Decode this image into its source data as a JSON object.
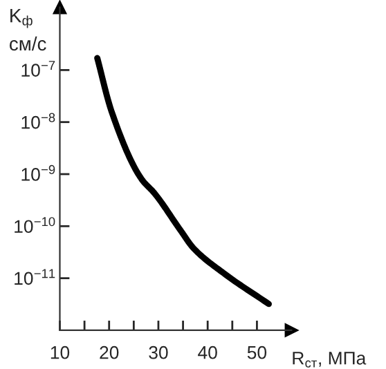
{
  "chart_data": {
    "type": "line",
    "xlabel": "R$_{ст}$, МПа",
    "ylabel": "K$_{ф}$\nсм/с",
    "x": [
      17.6,
      20.5,
      26.6,
      29.2,
      34.5,
      37.1,
      43.2,
      52.4
    ],
    "series": [
      {
        "color": "#000000",
        "values": [
          1.7e-07,
          1.6e-08,
          8e-10,
          4.3e-10,
          8.3e-11,
          3.8e-11,
          1.26e-11,
          3.2e-12
        ]
      }
    ],
    "log": "y",
    "xlim": [
      10,
      57
    ],
    "xticks": [
      10,
      {
        "value": 15,
        "label": null
      },
      20,
      {
        "value": 25,
        "label": null
      },
      30,
      {
        "value": 35,
        "label": null
      },
      40,
      {
        "value": 45,
        "label": null
      },
      50
    ],
    "ylim": [
      1e-12,
      1.6e-06
    ],
    "yticks": [
      {
        "value": 1e-07,
        "label": "10$^{−7}$"
      },
      {
        "value": 1e-08,
        "label": "10$^{−8}$"
      },
      {
        "value": 1e-09,
        "label": "10$^{−9}$"
      },
      {
        "value": 1e-10,
        "label": "10$^{−10}$"
      },
      {
        "value": 1e-11,
        "label": "10$^{−11}$"
      }
    ],
    "grid": false,
    "legend": false,
    "marker": "none",
    "line_style": "solid"
  }
}
